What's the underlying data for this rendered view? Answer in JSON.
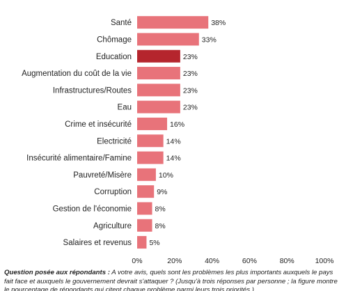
{
  "chart_data": {
    "type": "bar",
    "orientation": "horizontal",
    "categories": [
      "Santé",
      "Chômage",
      "Education",
      "Augmentation du coût de la vie",
      "Infrastructures/Routes",
      "Eau",
      "Crime et insécurité",
      "Electricité",
      "Insécurité alimentaire/Famine",
      "Pauvreté/Misère",
      "Corruption",
      "Gestion de l'économie",
      "Agriculture",
      "Salaires et revenus"
    ],
    "values": [
      38,
      33,
      23,
      23,
      23,
      23,
      16,
      14,
      14,
      10,
      9,
      8,
      8,
      5
    ],
    "value_labels": [
      "38%",
      "33%",
      "23%",
      "23%",
      "23%",
      "23%",
      "16%",
      "14%",
      "14%",
      "10%",
      "9%",
      "8%",
      "8%",
      "5%"
    ],
    "highlight_index": 2,
    "xlim": [
      0,
      100
    ],
    "xticks": [
      "0%",
      "20%",
      "40%",
      "60%",
      "80%",
      "100%"
    ],
    "grid": false,
    "colors": {
      "bar": "#e8737a",
      "highlight": "#b5252d"
    }
  },
  "note": {
    "label": "Question posée aux répondants :",
    "text": "A votre avis, quels sont les problèmes les plus importants auxquels le pays fait face et auxquels le gouvernement devrait s'attaquer ? (Jusqu'à trois réponses par personne ; la figure montre le pourcentage de répondants qui citent chaque problème parmi leurs trois priorités.)"
  }
}
